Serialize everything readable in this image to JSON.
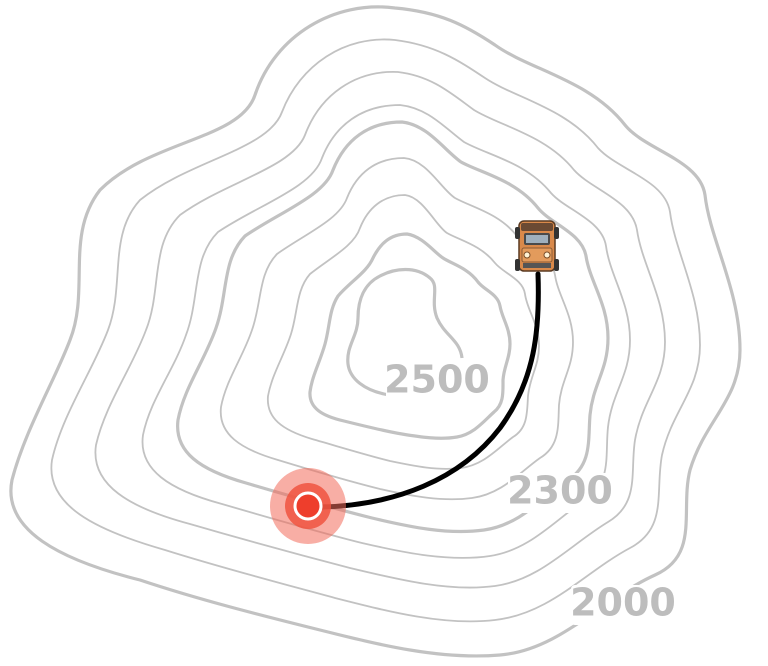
{
  "map": {
    "contour_labels": [
      {
        "id": "contour-label-2500",
        "text": "2500"
      },
      {
        "id": "contour-label-2300",
        "text": "2300"
      },
      {
        "id": "contour-label-2000",
        "text": "2000"
      }
    ],
    "colors": {
      "contour": "#c2c2c2",
      "contour_label": "#bdbdbd",
      "route": "#000000",
      "destination_halo": "#f26b5b",
      "destination_core": "#ee3e2c",
      "vehicle_body": "#d9894a"
    },
    "icons": {
      "vehicle": "truck-icon",
      "destination": "destination-marker-icon"
    }
  }
}
